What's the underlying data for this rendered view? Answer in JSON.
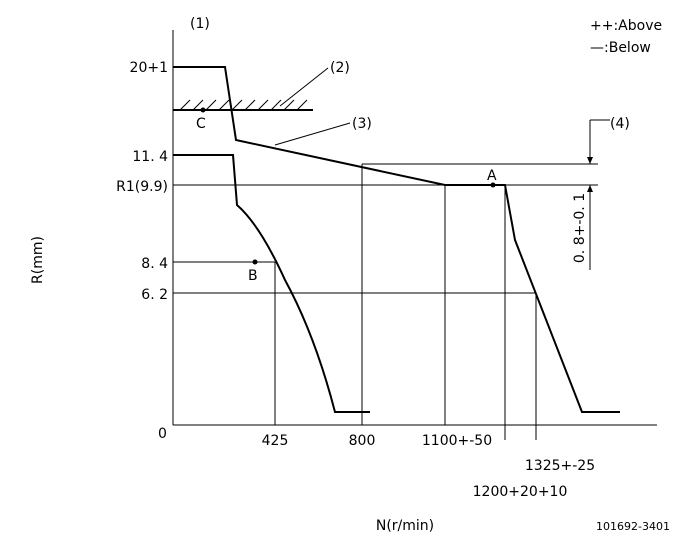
{
  "labels": {
    "ref1": "(1)",
    "above": "++:Above",
    "below": "—:Below",
    "r20": "20+1",
    "ref2": "(2)",
    "c": "C",
    "ref3": "(3)",
    "ref4": "(4)",
    "r114": "11. 4",
    "r1": "R1(9.9)",
    "a": "A",
    "yaxis": "R(mm)",
    "r84": "8. 4",
    "b": "B",
    "r62": "6. 2",
    "dim": "0. 8+-0. 1",
    "zero": "0",
    "n425": "425",
    "n800": "800",
    "n1100": "1100+-50",
    "n1325": "1325+-25",
    "n1200": "1200+20+10",
    "xaxis": "N(r/min)",
    "code": "101692-3401"
  }
}
